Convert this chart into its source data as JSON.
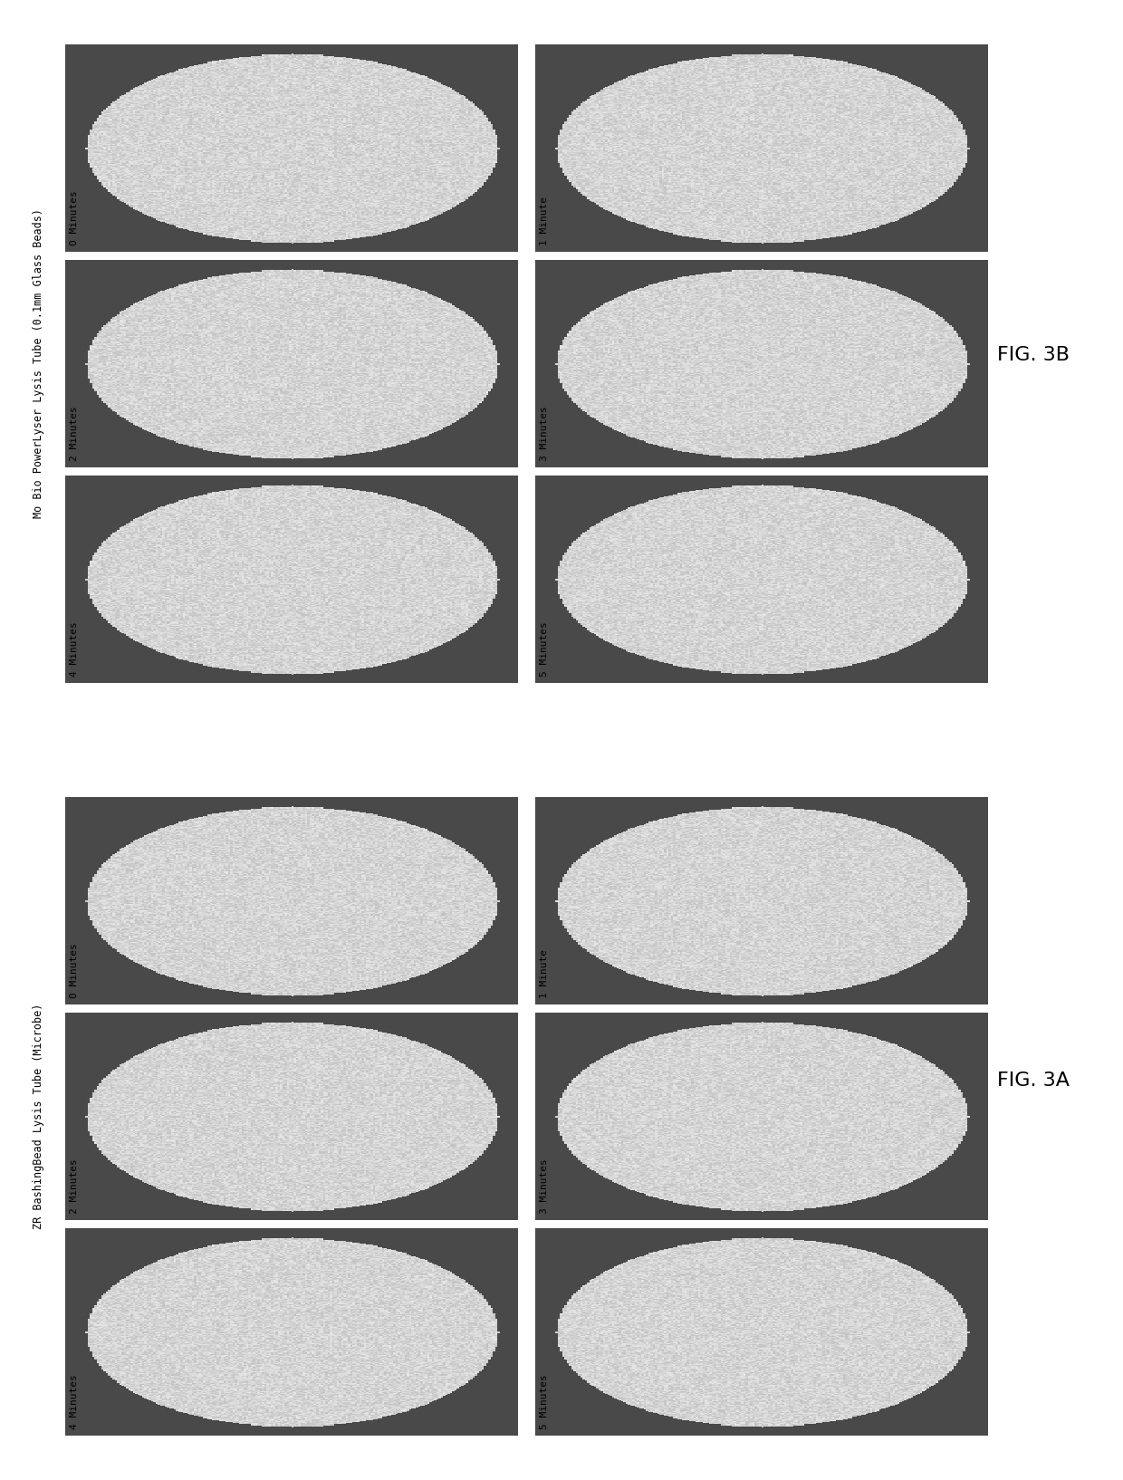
{
  "fig_width": 12.4,
  "fig_height": 16.34,
  "background_color": "#ffffff",
  "cell_bg": "#4a4a4a",
  "panel_A_label": "FIG. 3A",
  "panel_B_label": "FIG. 3B",
  "panel_A_title": "ZR BashingBead Lysis Tube (Microbe)",
  "panel_B_title": "Mo Bio PowerLyser Lysis Tube (0.1mm Glass Beads)",
  "panel_B_labels": [
    [
      "0 Minutes",
      "1 Minute"
    ],
    [
      "2 Minutes",
      "3 Minutes"
    ],
    [
      "4 Minutes",
      "5 Minutes"
    ]
  ],
  "panel_A_labels": [
    [
      "0 Minutes",
      "1 Minute"
    ],
    [
      "2 Minutes",
      "3 Minutes"
    ],
    [
      "4 Minutes",
      "5 Minutes"
    ]
  ],
  "label_fontsize": 8,
  "fig_label_fontsize": 16,
  "title_fontsize": 8.5,
  "noise_seed_A": 42,
  "noise_seed_B": 77,
  "circle_base_val": 0.83,
  "circle_noise": 0.07,
  "bg_val": 0.29
}
